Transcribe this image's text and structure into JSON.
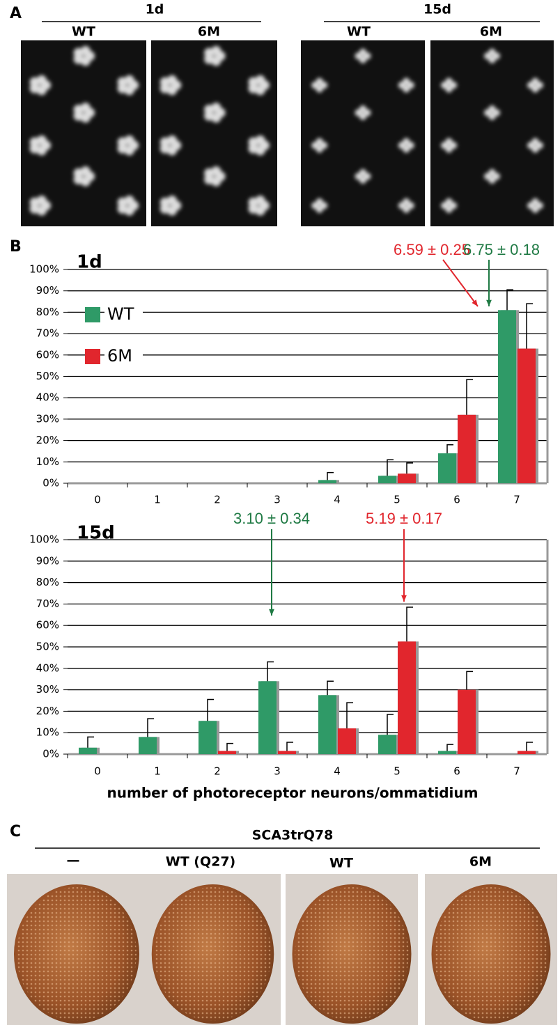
{
  "panel_a": {
    "label": "A",
    "groups": [
      {
        "title": "1d",
        "labels": [
          "WT",
          "6M"
        ]
      },
      {
        "title": "15d",
        "labels": [
          "WT",
          "6M"
        ]
      }
    ]
  },
  "panel_b": {
    "label": "B"
  },
  "chart_data": [
    {
      "type": "bar",
      "title": "1d",
      "categories": [
        "0",
        "1",
        "2",
        "3",
        "4",
        "5",
        "6",
        "7"
      ],
      "series": [
        {
          "name": "WT",
          "color": "#2f9a67",
          "values": [
            0,
            0,
            0,
            0,
            1.5,
            3.5,
            14,
            81
          ],
          "errors": [
            null,
            null,
            null,
            null,
            3.5,
            7.5,
            4,
            9.5
          ]
        },
        {
          "name": "6M",
          "color": "#e1262d",
          "values": [
            0,
            0,
            0,
            0,
            0,
            4.5,
            32,
            63
          ],
          "errors": [
            null,
            null,
            null,
            null,
            null,
            5,
            16.5,
            21
          ]
        }
      ],
      "ylim": [
        0,
        100
      ],
      "yticks": [
        {
          "value": 0,
          "label": "0%"
        },
        {
          "value": 10,
          "label": "10%"
        },
        {
          "value": 20,
          "label": "20%"
        },
        {
          "value": 30,
          "label": "30%"
        },
        {
          "value": 40,
          "label": "40%"
        },
        {
          "value": 50,
          "label": "50%"
        },
        {
          "value": 60,
          "label": "60%"
        },
        {
          "value": 70,
          "label": "70%"
        },
        {
          "value": 80,
          "label": "80%"
        },
        {
          "value": 90,
          "label": "90%"
        },
        {
          "value": 100,
          "label": "100%"
        }
      ],
      "grid": true,
      "legend": true,
      "annotations": [
        {
          "text": "6.59 ± 0.25",
          "color": "#e1262d"
        },
        {
          "text": "6.75 ± 0.18",
          "color": "#1f7a44"
        }
      ]
    },
    {
      "type": "bar",
      "title": "15d",
      "categories": [
        "0",
        "1",
        "2",
        "3",
        "4",
        "5",
        "6",
        "7"
      ],
      "x_label": "number of photoreceptor neurons/ommatidium",
      "series": [
        {
          "name": "WT",
          "color": "#2f9a67",
          "values": [
            3,
            8,
            15.5,
            34,
            27.5,
            9,
            1.5,
            0
          ],
          "errors": [
            5,
            8.5,
            10,
            9,
            6.5,
            9.5,
            3,
            null
          ]
        },
        {
          "name": "6M",
          "color": "#e1262d",
          "values": [
            0,
            0,
            1.5,
            1.5,
            12,
            52.5,
            30,
            1.5
          ],
          "errors": [
            null,
            null,
            3.5,
            4,
            12,
            16,
            8.5,
            4
          ]
        }
      ],
      "ylim": [
        0,
        100
      ],
      "yticks": [
        {
          "value": 0,
          "label": "0%"
        },
        {
          "value": 10,
          "label": "10%"
        },
        {
          "value": 20,
          "label": "20%"
        },
        {
          "value": 30,
          "label": "30%"
        },
        {
          "value": 40,
          "label": "40%"
        },
        {
          "value": 50,
          "label": "50%"
        },
        {
          "value": 60,
          "label": "60%"
        },
        {
          "value": 70,
          "label": "70%"
        },
        {
          "value": 80,
          "label": "80%"
        },
        {
          "value": 90,
          "label": "90%"
        },
        {
          "value": 100,
          "label": "100%"
        }
      ],
      "grid": true,
      "legend": false,
      "annotations": [
        {
          "text": "3.10 ± 0.34",
          "color": "#1f7a44"
        },
        {
          "text": "5.19 ± 0.17",
          "color": "#e1262d"
        }
      ]
    }
  ],
  "panel_c": {
    "label": "C",
    "title": "SCA3trQ78",
    "labels": [
      "—",
      "WT (Q27)",
      "WT",
      "6M"
    ]
  }
}
